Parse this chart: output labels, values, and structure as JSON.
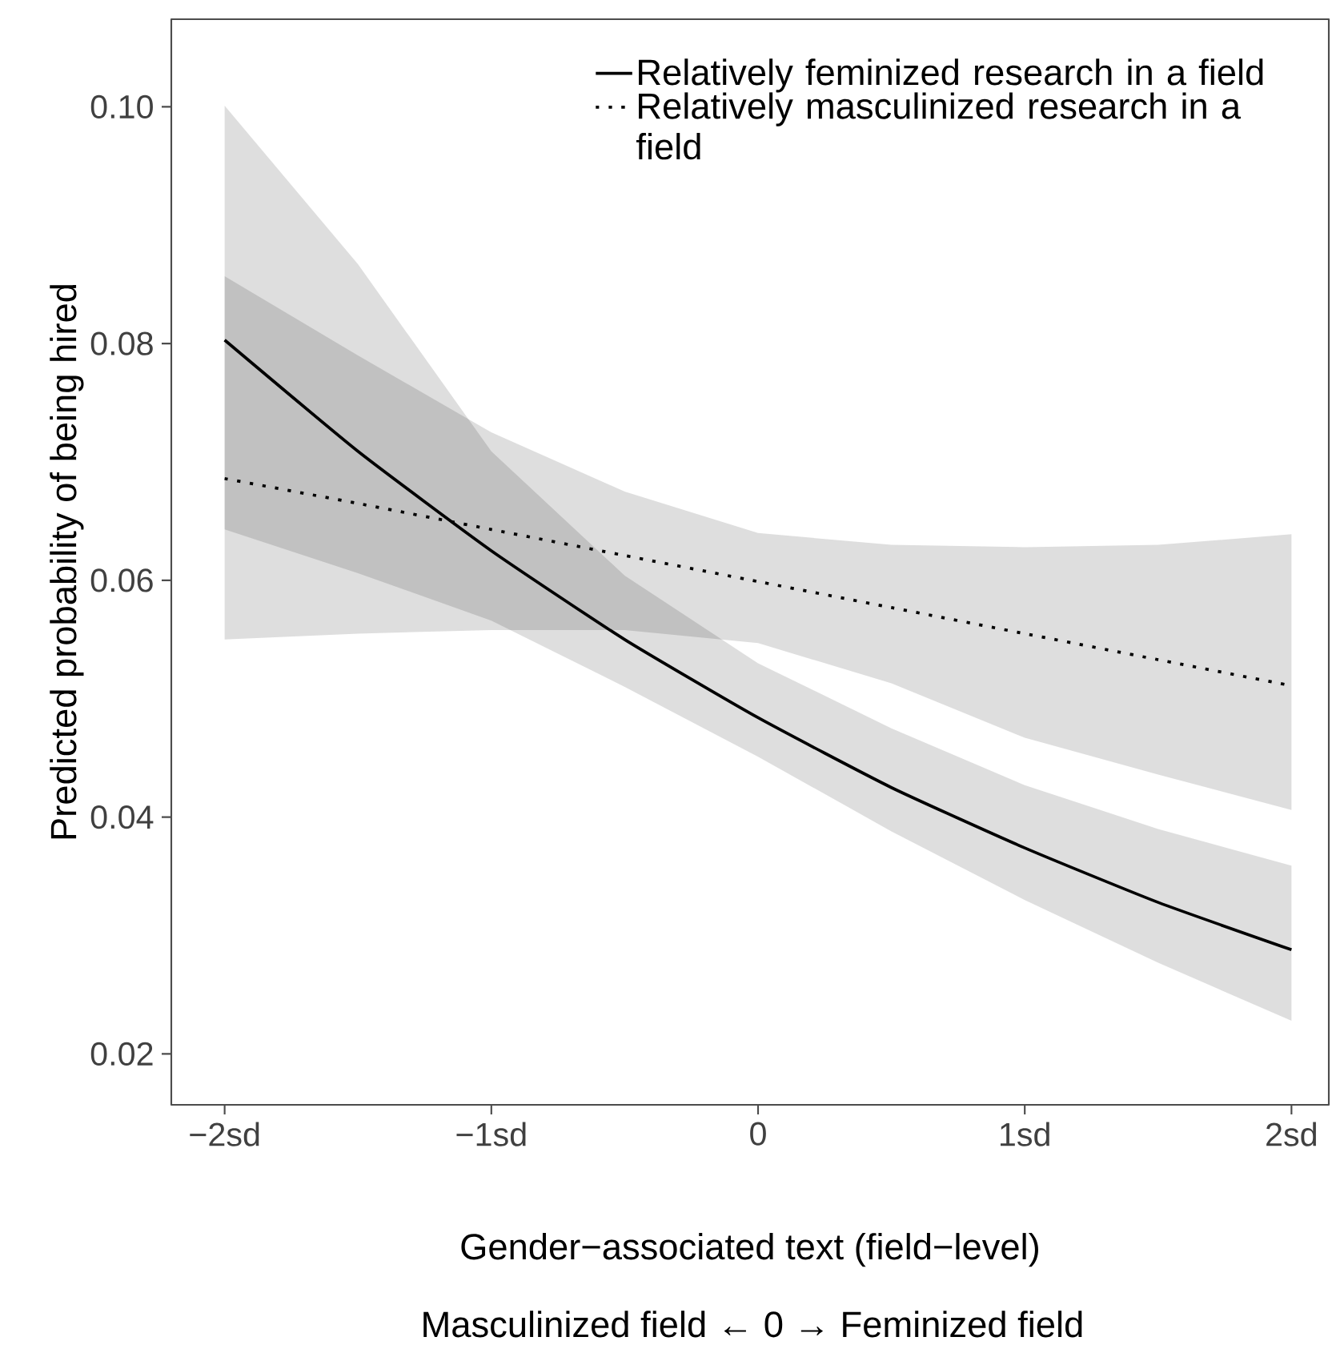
{
  "chart_data": {
    "type": "line",
    "xlabel": "Gender−associated text (field−level)",
    "ylabel": "Predicted probability of being hired",
    "annotations": [
      "Masculinized field ← 0 → Feminized field"
    ],
    "x": [
      -2,
      -1.5,
      -1,
      -0.5,
      0,
      0.5,
      1,
      1.5,
      2
    ],
    "xlim": [
      -2.2,
      2.14
    ],
    "ylim": [
      0.0157,
      0.1074
    ],
    "xticks": [
      {
        "value": -2,
        "label": "−2sd"
      },
      {
        "value": -1,
        "label": "−1sd"
      },
      0,
      {
        "value": 1,
        "label": "1sd"
      },
      {
        "value": 2,
        "label": "2sd"
      }
    ],
    "yticks": [
      0.02,
      0.04,
      0.06,
      0.08,
      {
        "value": 0.1,
        "label": "0.10"
      }
    ],
    "grid": false,
    "legend": "top right",
    "marker": "none",
    "series": [
      {
        "name": "Relatively feminized research in a field",
        "color": "#000000",
        "line_style": "solid",
        "values": [
          0.0803,
          0.0709,
          0.0625,
          0.055,
          0.0484,
          0.0425,
          0.0374,
          0.0328,
          0.0288
        ],
        "upper": [
          0.1001,
          0.0867,
          0.0709,
          0.0604,
          0.053,
          0.0475,
          0.0427,
          0.039,
          0.0359
        ],
        "lower": [
          0.0643,
          0.0606,
          0.0566,
          0.051,
          0.0451,
          0.0388,
          0.033,
          0.0277,
          0.0228
        ]
      },
      {
        "name": "Relatively masculinized research in a field",
        "color": "#000000",
        "line_style": "dotted",
        "values": [
          0.0686,
          0.0665,
          0.0643,
          0.0621,
          0.0599,
          0.0577,
          0.0555,
          0.0533,
          0.0511
        ],
        "upper": [
          0.0857,
          0.079,
          0.0725,
          0.0675,
          0.064,
          0.063,
          0.0628,
          0.063,
          0.0639
        ],
        "lower": [
          0.055,
          0.0555,
          0.0558,
          0.0558,
          0.0547,
          0.0513,
          0.0467,
          0.0436,
          0.0406
        ]
      }
    ]
  }
}
